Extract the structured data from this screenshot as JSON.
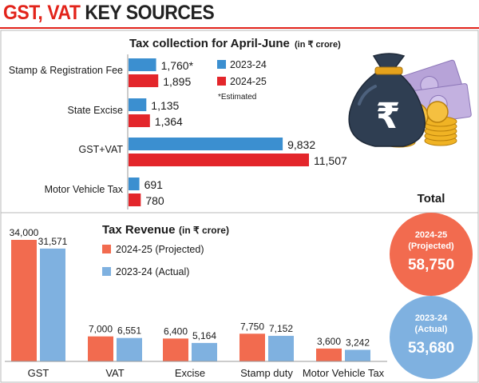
{
  "page": {
    "title_part1": "GST, VAT",
    "title_part2": "KEY SOURCES"
  },
  "colors": {
    "blue_top": "#3b8fd0",
    "red_top": "#e3262b",
    "orange_bottom": "#f26b4f",
    "blue_bottom": "#7fb1e0",
    "circle_2425": "#f26b4f",
    "circle_2324": "#7fb1e0"
  },
  "chart_data": [
    {
      "type": "bar",
      "orientation": "horizontal",
      "title": "Tax collection for April-June",
      "title_unit": "(in ₹ crore)",
      "categories": [
        "Stamp & Registration Fee",
        "State Excise",
        "GST+VAT",
        "Motor Vehicle Tax"
      ],
      "series": [
        {
          "name": "2023-24",
          "values": [
            1760,
            1135,
            9832,
            691
          ],
          "labels": [
            "1,760*",
            "1,135",
            "9,832",
            "691"
          ]
        },
        {
          "name": "2024-25",
          "values": [
            1895,
            1364,
            11507,
            780
          ],
          "labels": [
            "1,895",
            "1,364",
            "11,507",
            "780"
          ]
        }
      ],
      "note": "*Estimated",
      "legend_position": "top-right"
    },
    {
      "type": "bar",
      "title": "Tax Revenue",
      "title_unit": "(in ₹ crore)",
      "categories": [
        "GST",
        "VAT",
        "Excise",
        "Stamp duty",
        "Motor Vehicle Tax"
      ],
      "series": [
        {
          "name": "2024-25 (Projected)",
          "values": [
            34000,
            7000,
            6400,
            7750,
            3600
          ],
          "labels": [
            "34,000",
            "7,000",
            "6,400",
            "7,750",
            "3,600"
          ]
        },
        {
          "name": "2023-24 (Actual)",
          "values": [
            31571,
            6551,
            5164,
            7152,
            3242
          ],
          "labels": [
            "31,571",
            "6,551",
            "5,164",
            "7,152",
            "3,242"
          ]
        }
      ],
      "legend_position": "top-center"
    }
  ],
  "totals": {
    "heading": "Total",
    "circles": [
      {
        "year": "2024-25",
        "sub": "(Projected)",
        "value": "58,750"
      },
      {
        "year": "2023-24",
        "sub": "(Actual)",
        "value": "53,680"
      }
    ]
  }
}
